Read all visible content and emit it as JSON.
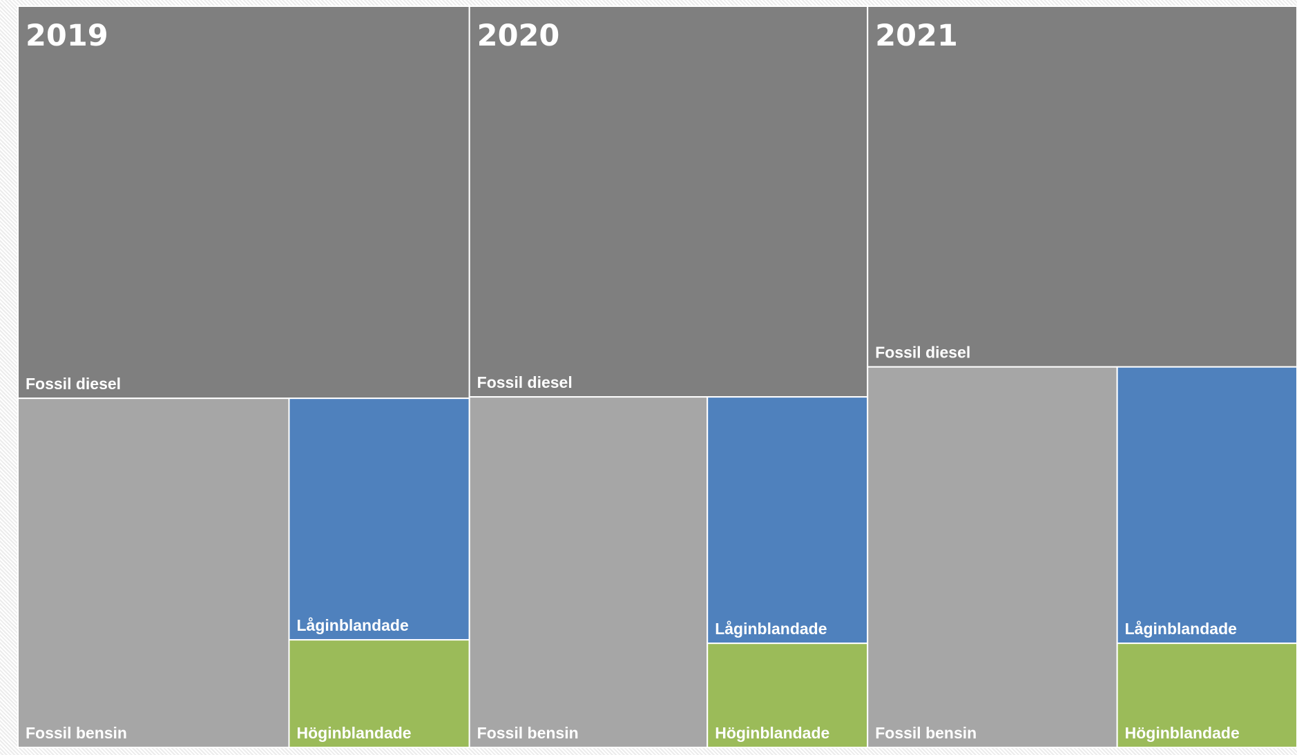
{
  "chart_data": {
    "type": "treemap",
    "title": "",
    "categories": [
      "Fossil diesel",
      "Fossil bensin",
      "Låginblandade",
      "Höginblandade"
    ],
    "colors": {
      "Fossil diesel": "#7f7f7f",
      "Fossil bensin": "#a6a6a6",
      "Låginblandade": "#4f81bd",
      "Höginblandade": "#9bbb59"
    },
    "groups": [
      {
        "name": "2019",
        "items": [
          {
            "name": "Fossil diesel",
            "value": 52.0
          },
          {
            "name": "Fossil bensin",
            "value": 27.8
          },
          {
            "name": "Låginblandade",
            "value": 12.8
          },
          {
            "name": "Höginblandade",
            "value": 5.7
          }
        ]
      },
      {
        "name": "2020",
        "items": [
          {
            "name": "Fossil diesel",
            "value": 45.7
          },
          {
            "name": "Fossil bensin",
            "value": 24.5
          },
          {
            "name": "Låginblandade",
            "value": 11.6
          },
          {
            "name": "Höginblandade",
            "value": 4.9
          }
        ]
      },
      {
        "name": "2021",
        "items": [
          {
            "name": "Fossil diesel",
            "value": 45.5
          },
          {
            "name": "Fossil bensin",
            "value": 27.9
          },
          {
            "name": "Låginblandade",
            "value": 14.6
          },
          {
            "name": "Höginblandade",
            "value": 5.5
          }
        ]
      }
    ]
  }
}
